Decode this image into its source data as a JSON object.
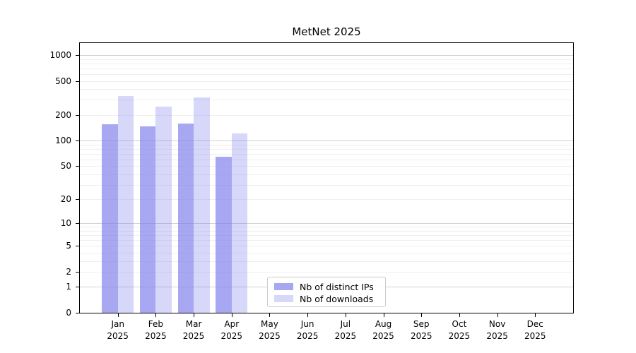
{
  "chart_data": {
    "type": "bar",
    "title": "MetNet 2025",
    "categories": [
      "Jan",
      "Feb",
      "Mar",
      "Apr",
      "May",
      "Jun",
      "Jul",
      "Aug",
      "Sep",
      "Oct",
      "Nov",
      "Dec"
    ],
    "category_year": "2025",
    "series": [
      {
        "name": "Nb of distinct IPs",
        "base_color": "#7a7aeb",
        "alpha": 0.66,
        "legend_color": "#a7a7f1",
        "values": [
          156,
          147,
          158,
          64,
          null,
          null,
          null,
          null,
          null,
          null,
          null,
          null
        ]
      },
      {
        "name": "Nb of downloads",
        "base_color": "#7a7aeb",
        "alpha": 0.3,
        "legend_color": "#d7d7f9",
        "values": [
          335,
          252,
          322,
          121,
          null,
          null,
          null,
          null,
          null,
          null,
          null,
          null
        ]
      }
    ],
    "xlabel": "",
    "ylabel": "",
    "y_axis": {
      "scale": "log10(value+1)",
      "ticks": [
        0,
        1,
        2,
        5,
        10,
        20,
        50,
        100,
        200,
        500,
        1000
      ],
      "max_value": 1380,
      "major_gridlines": [
        1,
        10,
        100,
        1000
      ],
      "minor_gridline_decades": [
        1,
        10,
        100
      ]
    },
    "grid": true,
    "legend_position": "bottom-center"
  },
  "colors": {
    "grid_minor": "#efefef",
    "grid_major": "#d2d2d2",
    "axis": "#000000",
    "background": "#ffffff"
  }
}
